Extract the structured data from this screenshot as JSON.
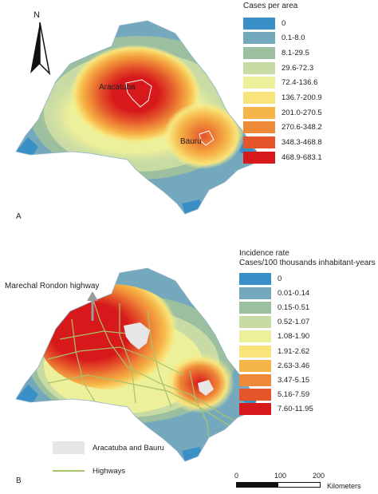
{
  "panel_a": {
    "letter": "A",
    "north": "N",
    "city_labels": [
      "Aracatuba",
      "Bauru"
    ],
    "legend_title": "Cases per area",
    "legend": [
      {
        "label": "0",
        "color": "#3a8fc7"
      },
      {
        "label": "0.1-8.0",
        "color": "#74a9bd"
      },
      {
        "label": "8.1-29.5",
        "color": "#9cbf9f"
      },
      {
        "label": "29.6-72.3",
        "color": "#c8dba4"
      },
      {
        "label": "72.4-136.6",
        "color": "#edf09a"
      },
      {
        "label": "136.7-200.9",
        "color": "#f8e47a"
      },
      {
        "label": "201.0-270.5",
        "color": "#f6b548"
      },
      {
        "label": "270.6-348.2",
        "color": "#ef8a38"
      },
      {
        "label": "348.3-468.8",
        "color": "#e4552a"
      },
      {
        "label": "468.9-683.1",
        "color": "#d7191c"
      }
    ]
  },
  "panel_b": {
    "letter": "B",
    "highway_label": "Marechal Rondon highway",
    "legend_title_1": "Incidence rate",
    "legend_title_2": "Cases/100 thousands inhabitant-years",
    "legend": [
      {
        "label": "0",
        "color": "#3a8fc7"
      },
      {
        "label": "0.01-0.14",
        "color": "#74a9bd"
      },
      {
        "label": "0.15-0.51",
        "color": "#9cbf9f"
      },
      {
        "label": "0.52-1.07",
        "color": "#c8dba4"
      },
      {
        "label": "1.08-1.90",
        "color": "#edf09a"
      },
      {
        "label": "1.91-2.62",
        "color": "#f8e47a"
      },
      {
        "label": "2.63-3.46",
        "color": "#f6b548"
      },
      {
        "label": "3.47-5.15",
        "color": "#ef8a38"
      },
      {
        "label": "5.16-7.59",
        "color": "#e4552a"
      },
      {
        "label": "7.60-11.95",
        "color": "#d7191c"
      }
    ],
    "legend_extra": {
      "cities_label": "Aracatuba and Bauru",
      "cities_color": "#e6e6e6",
      "highways_label": "Highways",
      "highways_color": "#a8c36a"
    },
    "scale": {
      "ticks": [
        "0",
        "100",
        "200"
      ],
      "unit": "Kilometers"
    }
  }
}
